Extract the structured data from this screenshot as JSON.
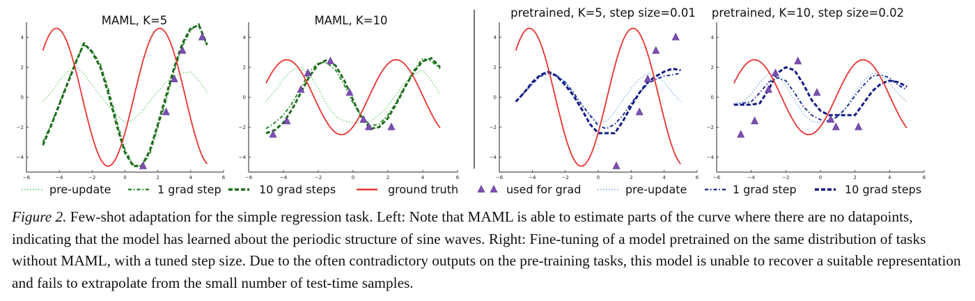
{
  "chart_data": [
    {
      "type": "line",
      "title": "MAML, K=5",
      "xlim": [
        -6,
        6
      ],
      "ylim": [
        -5,
        5
      ],
      "xticks": [
        -6,
        -4,
        -2,
        0,
        2,
        4,
        6
      ],
      "yticks": [
        -4,
        -2,
        0,
        2,
        4
      ],
      "ground_truth": {
        "amplitude": 4.6,
        "phase": 0.54
      },
      "series": [
        {
          "name": "pre-update",
          "color": "#7ed67e",
          "dash": "1.5,2.5",
          "width": 1.6,
          "x": [
            -5,
            -4.5,
            -4,
            -3.5,
            -3,
            -2.5,
            -2,
            -1.5,
            -1,
            -0.5,
            0,
            0.5,
            1,
            1.5,
            2,
            2.5,
            3,
            3.5,
            4,
            4.5,
            5
          ],
          "y": [
            -0.3,
            0.3,
            1.1,
            1.7,
            2.0,
            1.6,
            0.8,
            0.1,
            -0.6,
            -1.2,
            -1.7,
            -1.5,
            -1.0,
            -0.3,
            0.4,
            1.0,
            1.4,
            1.6,
            1.7,
            1.1,
            0.3
          ]
        },
        {
          "name": "1 grad step",
          "color": "#2a8a2a",
          "dash": "5,3,1.5,3",
          "width": 2,
          "x": [
            -5,
            -4.5,
            -4,
            -3.5,
            -3,
            -2.5,
            -2,
            -1.5,
            -1,
            -0.5,
            0,
            0.5,
            1,
            1.5,
            2,
            2.5,
            3,
            3.5,
            4,
            4.5,
            5
          ],
          "y": [
            -3.0,
            -1.8,
            -0.4,
            1.0,
            2.4,
            3.5,
            3.1,
            2.2,
            0.5,
            -1.6,
            -3.5,
            -4.5,
            -4.6,
            -3.8,
            -2.0,
            -0.2,
            1.8,
            3.4,
            4.5,
            4.9,
            3.4
          ]
        },
        {
          "name": "10 grad steps",
          "color": "#1e6b1e",
          "dash": "6,3",
          "width": 3,
          "x": [
            -5,
            -4.5,
            -4,
            -3.5,
            -3,
            -2.5,
            -2,
            -1.5,
            -1,
            -0.5,
            0,
            0.5,
            1,
            1.5,
            2,
            2.5,
            3,
            3.5,
            4,
            4.5,
            5
          ],
          "y": [
            -3.2,
            -1.9,
            -0.5,
            0.9,
            2.3,
            3.6,
            3.0,
            2.0,
            0.2,
            -1.9,
            -3.7,
            -4.6,
            -4.6,
            -3.6,
            -1.8,
            0.1,
            2.0,
            3.6,
            4.6,
            4.8,
            3.5
          ]
        }
      ],
      "grad_points": {
        "x": [
          1.1,
          2.5,
          3.0,
          3.5,
          4.7
        ],
        "y": [
          -4.6,
          -1.0,
          1.2,
          3.1,
          4.0
        ]
      }
    },
    {
      "type": "line",
      "title": "MAML, K=10",
      "xlim": [
        -6,
        6
      ],
      "ylim": [
        -5,
        5
      ],
      "xticks": [
        -6,
        -4,
        -2,
        0,
        2,
        4,
        6
      ],
      "yticks": [
        -4,
        -2,
        0,
        2,
        4
      ],
      "ground_truth": {
        "amplitude": 2.5,
        "phase": 0.9
      },
      "series": [
        {
          "name": "pre-update",
          "color": "#7ed67e",
          "dash": "1.5,2.5",
          "width": 1.6,
          "x": [
            -5,
            -4.5,
            -4,
            -3.5,
            -3,
            -2.5,
            -2,
            -1.5,
            -1,
            -0.5,
            0,
            0.5,
            1,
            1.5,
            2,
            2.5,
            3,
            3.5,
            4,
            4.5,
            5
          ],
          "y": [
            -0.3,
            0.4,
            1.2,
            1.8,
            2.0,
            1.5,
            0.6,
            -0.5,
            -1.3,
            -1.6,
            -1.7,
            -1.7,
            -1.6,
            -1.2,
            -0.6,
            0.2,
            1.0,
            1.5,
            1.8,
            1.1,
            0.2
          ]
        },
        {
          "name": "1 grad step",
          "color": "#2a8a2a",
          "dash": "5,3,1.5,3",
          "width": 2,
          "x": [
            -5,
            -4.5,
            -4,
            -3.5,
            -3,
            -2.5,
            -2,
            -1.5,
            -1,
            -0.5,
            0,
            0.5,
            1,
            1.5,
            2,
            2.5,
            3,
            3.5,
            4,
            4.5,
            5
          ],
          "y": [
            -2.1,
            -1.7,
            -1.2,
            -0.4,
            0.6,
            1.7,
            2.3,
            2.3,
            1.8,
            0.8,
            -0.4,
            -1.3,
            -1.9,
            -1.8,
            -1.2,
            -0.3,
            0.8,
            1.8,
            2.6,
            2.4,
            1.9
          ]
        },
        {
          "name": "10 grad steps",
          "color": "#1e6b1e",
          "dash": "6,3",
          "width": 3,
          "x": [
            -5,
            -4.5,
            -4,
            -3.5,
            -3,
            -2.5,
            -2,
            -1.5,
            -1,
            -0.5,
            0,
            0.5,
            1,
            1.5,
            2,
            2.5,
            3,
            3.5,
            4,
            4.5,
            5
          ],
          "y": [
            -2.4,
            -2.2,
            -1.7,
            -0.8,
            0.3,
            1.4,
            2.2,
            2.5,
            2.1,
            1.1,
            -0.2,
            -1.4,
            -2.1,
            -2.0,
            -1.4,
            -0.4,
            0.7,
            1.7,
            2.4,
            2.6,
            2.0
          ]
        }
      ],
      "grad_points": {
        "x": [
          -4.6,
          -3.8,
          -3.0,
          -2.6,
          -1.3,
          -0.2,
          0.6,
          0.9,
          2.2
        ],
        "y": [
          -2.5,
          -1.6,
          0.5,
          1.6,
          2.4,
          0.3,
          -1.5,
          -2.0,
          -2.0
        ]
      }
    },
    {
      "type": "line",
      "title": "pretrained, K=5, step size=0.01",
      "xlim": [
        -6,
        6
      ],
      "ylim": [
        -5,
        5
      ],
      "xticks": [
        -6,
        -4,
        -2,
        0,
        2,
        4,
        6
      ],
      "yticks": [
        -4,
        -2,
        0,
        2,
        4
      ],
      "ground_truth": {
        "amplitude": 4.6,
        "phase": 0.54
      },
      "series": [
        {
          "name": "pre-update",
          "color": "#8ab8e8",
          "dash": "1.5,2.5",
          "width": 1.6,
          "x": [
            -5,
            -4.5,
            -4,
            -3.5,
            -3,
            -2.5,
            -2,
            -1.5,
            -1,
            -0.5,
            0,
            0.5,
            1,
            1.5,
            2,
            2.5,
            3,
            3.5,
            4,
            4.5,
            5
          ],
          "y": [
            -0.3,
            0.2,
            0.9,
            1.5,
            1.7,
            1.5,
            1.0,
            0.3,
            -0.5,
            -1.2,
            -1.7,
            -1.6,
            -1.0,
            -0.2,
            0.6,
            1.2,
            1.6,
            1.5,
            1.0,
            0.3,
            -0.3
          ]
        },
        {
          "name": "1 grad step",
          "color": "#1f2f9a",
          "dash": "5,3,1.5,3",
          "width": 2,
          "x": [
            -5,
            -4.5,
            -4,
            -3.5,
            -3,
            -2.5,
            -2,
            -1.5,
            -1,
            -0.5,
            0,
            0.5,
            1,
            1.5,
            2,
            2.5,
            3,
            3.5,
            4,
            4.5,
            5
          ],
          "y": [
            -0.3,
            0.3,
            0.9,
            1.4,
            1.6,
            1.4,
            1.0,
            0.3,
            -0.5,
            -1.2,
            -1.9,
            -2.1,
            -1.8,
            -1.2,
            -0.4,
            0.3,
            0.9,
            1.2,
            1.4,
            1.5,
            1.6
          ]
        },
        {
          "name": "10 grad steps",
          "color": "#101a85",
          "dash": "6,3",
          "width": 3,
          "x": [
            -5,
            -4.5,
            -4,
            -3.5,
            -3,
            -2.5,
            -2,
            -1.5,
            -1,
            -0.5,
            0,
            0.5,
            1,
            1.5,
            2,
            2.5,
            3,
            3.5,
            4,
            4.5,
            5
          ],
          "y": [
            -0.3,
            0.3,
            1.0,
            1.5,
            1.7,
            1.4,
            0.8,
            0.1,
            -0.8,
            -1.8,
            -2.4,
            -2.4,
            -2.4,
            -1.6,
            -0.6,
            0.3,
            1.0,
            1.4,
            1.7,
            1.9,
            1.8
          ]
        }
      ],
      "grad_points": {
        "x": [
          1.1,
          2.5,
          3.0,
          3.5,
          4.7
        ],
        "y": [
          -4.6,
          -1.0,
          1.2,
          3.1,
          4.0
        ]
      }
    },
    {
      "type": "line",
      "title": "pretrained, K=10, step size=0.02",
      "xlim": [
        -6,
        6
      ],
      "ylim": [
        -5,
        5
      ],
      "xticks": [
        -6,
        -4,
        -2,
        0,
        2,
        4,
        6
      ],
      "yticks": [
        -4,
        -2,
        0,
        2,
        4
      ],
      "ground_truth": {
        "amplitude": 2.5,
        "phase": 0.9
      },
      "series": [
        {
          "name": "pre-update",
          "color": "#8ab8e8",
          "dash": "1.5,2.5",
          "width": 1.6,
          "x": [
            -5,
            -4.5,
            -4,
            -3.5,
            -3,
            -2.5,
            -2,
            -1.5,
            -1,
            -0.5,
            0,
            0.5,
            1,
            1.5,
            2,
            2.5,
            3,
            3.5,
            4,
            4.5,
            5
          ],
          "y": [
            -0.4,
            -0.3,
            0.2,
            1.0,
            1.6,
            1.5,
            0.8,
            -0.2,
            -1.1,
            -1.6,
            -1.7,
            -1.6,
            -1.3,
            -0.6,
            0.3,
            1.1,
            1.6,
            1.5,
            0.9,
            0.2,
            -0.3
          ]
        },
        {
          "name": "1 grad step",
          "color": "#1f2f9a",
          "dash": "5,3,1.5,3",
          "width": 2,
          "x": [
            -5,
            -4.5,
            -4,
            -3.5,
            -3,
            -2.5,
            -2,
            -1.5,
            -1,
            -0.5,
            0,
            0.5,
            1,
            1.5,
            2,
            2.5,
            3,
            3.5,
            4,
            4.5,
            5
          ],
          "y": [
            -0.5,
            -0.4,
            -0.3,
            0.3,
            1.0,
            1.3,
            1.1,
            0.3,
            -0.6,
            -1.2,
            -1.5,
            -1.6,
            -1.3,
            -0.7,
            0.1,
            0.8,
            1.4,
            1.5,
            1.3,
            0.8,
            0.5
          ]
        },
        {
          "name": "10 grad steps",
          "color": "#101a85",
          "dash": "6,3",
          "width": 3,
          "x": [
            -5,
            -4.5,
            -4,
            -3.5,
            -3,
            -2.5,
            -2,
            -1.5,
            -1,
            -0.5,
            0,
            0.5,
            1,
            1.5,
            2,
            2.5,
            3,
            3.5,
            4,
            4.5,
            5
          ],
          "y": [
            -0.5,
            -0.5,
            -0.5,
            -0.4,
            0.5,
            1.6,
            2.0,
            1.8,
            0.9,
            -0.2,
            -0.9,
            -1.2,
            -1.2,
            -1.2,
            -1.2,
            -0.4,
            0.4,
            0.9,
            1.1,
            1.0,
            0.7
          ]
        }
      ],
      "grad_points": {
        "x": [
          -4.6,
          -3.8,
          -3.0,
          -2.6,
          -1.3,
          -0.2,
          0.6,
          0.9,
          2.2
        ],
        "y": [
          -2.5,
          -1.6,
          0.5,
          1.6,
          2.4,
          0.3,
          -1.5,
          -2.0,
          -2.0
        ]
      }
    }
  ],
  "styles": {
    "ground_truth_color": "#e8332f",
    "grad_point_color": "#7b4fb0",
    "axis_color": "#222222"
  },
  "legend": [
    {
      "label": "pre-update",
      "kind": "line",
      "color": "#7ed67e",
      "dash": "1.5,2.5",
      "width": 1.6
    },
    {
      "label": "1 grad step",
      "kind": "line",
      "color": "#2a8a2a",
      "dash": "5,3,1.5,3",
      "width": 2
    },
    {
      "label": "10 grad steps",
      "kind": "line",
      "color": "#1e6b1e",
      "dash": "6,3",
      "width": 3
    },
    {
      "label": "ground truth",
      "kind": "line",
      "color": "#e8332f",
      "dash": "",
      "width": 2
    },
    {
      "label": "used for grad",
      "kind": "marker",
      "color": "#7b4fb0"
    },
    {
      "label": "pre-update",
      "kind": "line",
      "color": "#8ab8e8",
      "dash": "1.5,2.5",
      "width": 1.6
    },
    {
      "label": "1 grad step",
      "kind": "line",
      "color": "#1f2f9a",
      "dash": "5,3,1.5,3",
      "width": 2
    },
    {
      "label": "10 grad steps",
      "kind": "line",
      "color": "#101a85",
      "dash": "6,3",
      "width": 3
    }
  ],
  "caption": {
    "label": "Figure 2.",
    "text": " Few-shot adaptation for the simple regression task. Left: Note that MAML is able to estimate parts of the curve where there are no datapoints, indicating that the model has learned about the periodic structure of sine waves. Right: Fine-tuning of a model pretrained on the same distribution of tasks without MAML, with a tuned step size. Due to the often contradictory outputs on the pre-training tasks, this model is unable to recover a suitable representation and fails to extrapolate from the small number of test-time samples."
  }
}
